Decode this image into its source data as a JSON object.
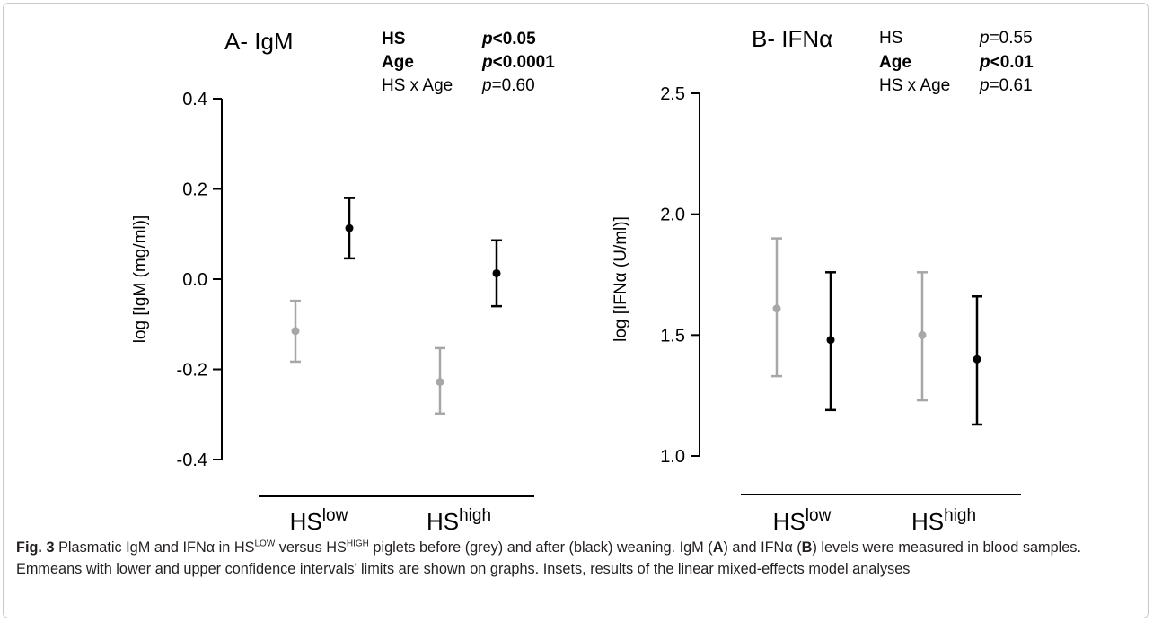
{
  "colors": {
    "before": "#a7a7a7",
    "after": "#000000"
  },
  "chart_data": [
    {
      "type": "scatter",
      "title": "A- IgM",
      "ylabel": "log [IgM (mg/ml)]",
      "ylim": [
        -0.4,
        0.4
      ],
      "yticks": [
        0.4,
        0.2,
        0.0,
        -0.2,
        -0.4
      ],
      "ytick_labels": [
        "0.4",
        "0.2",
        "0.0",
        "-0.2",
        "-0.4"
      ],
      "categories": [
        {
          "base": "HS",
          "sup": "low"
        },
        {
          "base": "HS",
          "sup": "high"
        }
      ],
      "series": [
        {
          "color_key": "before",
          "values": [
            -0.115,
            -0.228
          ],
          "lower": [
            -0.183,
            -0.298
          ],
          "upper": [
            -0.048,
            -0.153
          ]
        },
        {
          "color_key": "after",
          "values": [
            0.113,
            0.013
          ],
          "lower": [
            0.046,
            -0.06
          ],
          "upper": [
            0.18,
            0.086
          ]
        }
      ],
      "stats": [
        {
          "label": "HS",
          "p_italic": "p",
          "p_rest": "<0.05",
          "bold": true
        },
        {
          "label": "Age",
          "p_italic": "p",
          "p_rest": "<0.0001",
          "bold": true
        },
        {
          "label": "HS x Age",
          "p_italic": "p",
          "p_rest": "=0.60",
          "bold": false
        }
      ]
    },
    {
      "type": "scatter",
      "title": "B- IFNα",
      "ylabel": "log [IFNα (U/ml)]",
      "ylim": [
        1.0,
        2.5
      ],
      "yticks": [
        2.5,
        2.0,
        1.5,
        1.0
      ],
      "ytick_labels": [
        "2.5",
        "2.0",
        "1.5",
        "1.0"
      ],
      "categories": [
        {
          "base": "HS",
          "sup": "low"
        },
        {
          "base": "HS",
          "sup": "high"
        }
      ],
      "series": [
        {
          "color_key": "before",
          "values": [
            1.61,
            1.5
          ],
          "lower": [
            1.33,
            1.23
          ],
          "upper": [
            1.9,
            1.76
          ]
        },
        {
          "color_key": "after",
          "values": [
            1.48,
            1.4
          ],
          "lower": [
            1.19,
            1.13
          ],
          "upper": [
            1.76,
            1.66
          ]
        }
      ],
      "stats": [
        {
          "label": "HS",
          "p_italic": "p",
          "p_rest": "=0.55",
          "bold": false
        },
        {
          "label": "Age",
          "p_italic": "p",
          "p_rest": "<0.01",
          "bold": true
        },
        {
          "label": "HS x Age",
          "p_italic": "p",
          "p_rest": "=0.61",
          "bold": false
        }
      ]
    }
  ],
  "caption": {
    "fig_label": "Fig. 3",
    "t1": "Plasmatic IgM and IFNα in HS",
    "sup1": "LOW",
    "t2": " versus HS",
    "sup2": "HIGH",
    "t3": " piglets before (grey) and after (black) weaning. IgM (",
    "a": "A",
    "t4": ") and IFNα (",
    "b": "B",
    "t5": ") levels were measured in blood samples. Emmeans with lower and upper confidence intervals’ limits are shown on graphs. Insets, results of the linear mixed-effects model analyses"
  }
}
